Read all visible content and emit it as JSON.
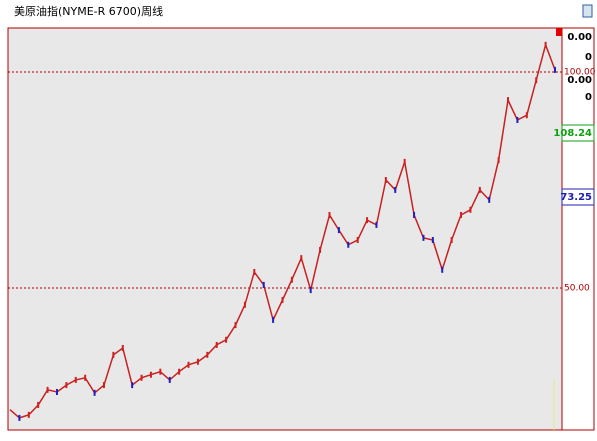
{
  "chart_data": {
    "type": "line",
    "title": "美原油指(NYME-R 6700)周线",
    "series": [
      {
        "name": null,
        "color": "#c82020",
        "values": [
          21.8,
          19.9,
          20.6,
          22.9,
          26.4,
          25.9,
          27.5,
          28.7,
          29.2,
          25.7,
          27.5,
          34.5,
          36.1,
          27.5,
          29.2,
          29.9,
          30.6,
          28.7,
          30.6,
          32.2,
          32.9,
          34.5,
          36.8,
          38.0,
          41.4,
          46.1,
          53.7,
          50.7,
          42.6,
          47.2,
          51.9,
          56.9,
          49.5,
          58.8,
          66.9,
          63.4,
          60.0,
          61.1,
          65.7,
          64.6,
          75.0,
          72.7,
          79.2,
          66.9,
          61.6,
          61.1,
          54.2,
          61.1,
          66.9,
          68.1,
          72.7,
          70.4,
          79.6,
          93.5,
          88.9,
          90.0,
          98.1,
          106.3,
          100.5
        ]
      }
    ],
    "ylim": [
      17.1,
      110.2
    ],
    "yticks": [
      {
        "value": 50,
        "label": "50.00"
      },
      {
        "value": 100,
        "label": "100.00"
      }
    ],
    "grid": true,
    "side_labels": [
      {
        "text": "0.00",
        "color": "#000000"
      },
      {
        "text": "0",
        "color": "#000000"
      },
      {
        "text": "0.00",
        "color": "#000000"
      },
      {
        "text": "0",
        "color": "#000000"
      },
      {
        "text": "108.24",
        "color": "#10a010"
      },
      {
        "text": "73.25",
        "color": "#2020b0"
      }
    ]
  }
}
